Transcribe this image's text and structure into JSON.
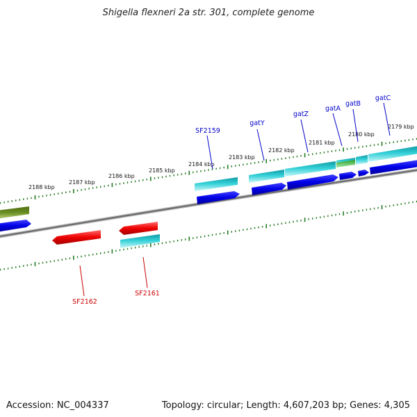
{
  "title": "Shigella flexneri 2a str. 301, complete genome",
  "footer": {
    "accession": "Accession: NC_004337",
    "topology": "Topology: circular; Length: 4,607,203 bp; Genes: 4,305"
  },
  "colors": {
    "backbone": "#7f7f7f",
    "ticks": "#1e7a1e",
    "forward_cds": "#0000e6",
    "forward_gene": "#27c3cc",
    "reverse_gene": "#27c3cc",
    "reverse_cds": "#e60000",
    "pseudogene_olive": "#6b8e23",
    "rna_green": "#3cb43c",
    "label_forward": "#0000cc",
    "label_reverse": "#cc0000"
  },
  "scale": {
    "tick_labels": [
      "2188 kbp",
      "2187 kbp",
      "2186 kbp",
      "2185 kbp",
      "2184 kbp",
      "2183 kbp",
      "2182 kbp",
      "2181 kbp",
      "2180 kbp",
      "2179 kbp"
    ]
  },
  "gene_labels": {
    "forward": [
      "SF2159",
      "gatY",
      "gatZ",
      "gatA",
      "gatB",
      "gatC"
    ],
    "reverse": [
      "SF2162",
      "SF2161"
    ]
  }
}
